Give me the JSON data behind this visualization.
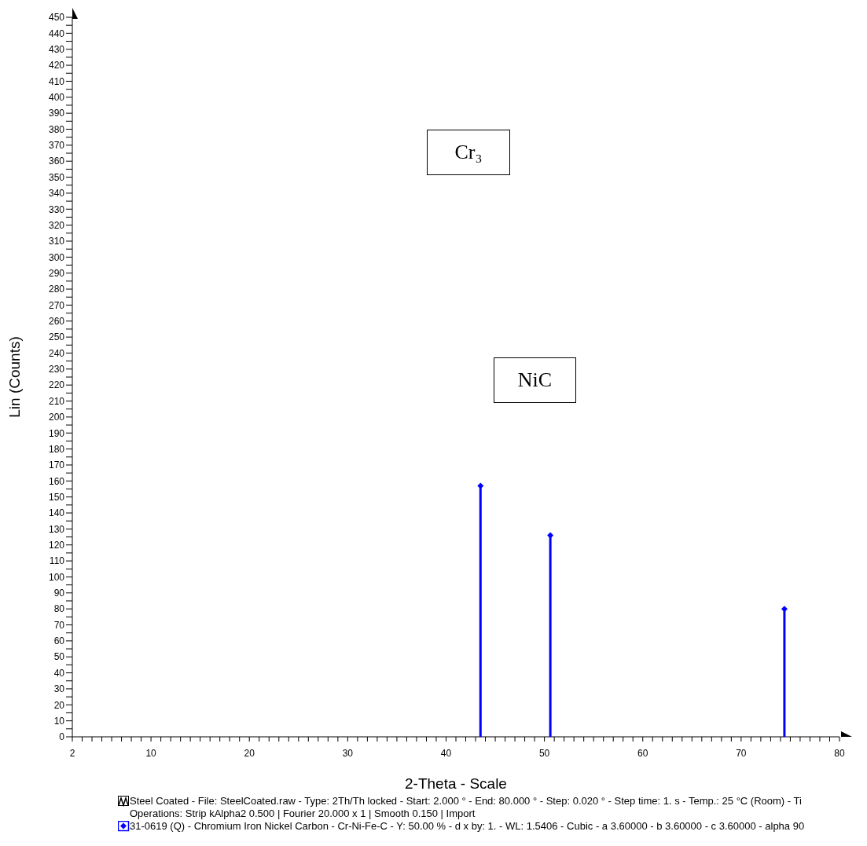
{
  "chart_data": {
    "type": "lollipop",
    "xlabel": "2-Theta - Scale",
    "ylabel": "Lin (Counts)",
    "x": [
      43.5,
      50.6,
      74.4
    ],
    "series": [
      {
        "name": "31-0619 (Q) - Chromium Iron Nickel Carbon - Cr-Ni-Fe-C - Y: 50.00 % - d x by: 1. - WL: 1.5406 - Cubic - a 3.60000 - b 3.60000 - c 3.60000 - alpha 90",
        "color": "#0000ff",
        "values": [
          157,
          126,
          80
        ]
      }
    ],
    "xlim": [
      2,
      80
    ],
    "xticks": [
      2,
      {
        "value": 3,
        "label": null
      },
      {
        "value": 4,
        "label": null
      },
      {
        "value": 5,
        "label": null
      },
      {
        "value": 6,
        "label": null
      },
      {
        "value": 7,
        "label": null
      },
      {
        "value": 8,
        "label": null
      },
      {
        "value": 9,
        "label": null
      },
      10,
      {
        "value": 11,
        "label": null
      },
      {
        "value": 12,
        "label": null
      },
      {
        "value": 13,
        "label": null
      },
      {
        "value": 14,
        "label": null
      },
      {
        "value": 15,
        "label": null
      },
      {
        "value": 16,
        "label": null
      },
      {
        "value": 17,
        "label": null
      },
      {
        "value": 18,
        "label": null
      },
      {
        "value": 19,
        "label": null
      },
      20,
      {
        "value": 21,
        "label": null
      },
      {
        "value": 22,
        "label": null
      },
      {
        "value": 23,
        "label": null
      },
      {
        "value": 24,
        "label": null
      },
      {
        "value": 25,
        "label": null
      },
      {
        "value": 26,
        "label": null
      },
      {
        "value": 27,
        "label": null
      },
      {
        "value": 28,
        "label": null
      },
      {
        "value": 29,
        "label": null
      },
      30,
      {
        "value": 31,
        "label": null
      },
      {
        "value": 32,
        "label": null
      },
      {
        "value": 33,
        "label": null
      },
      {
        "value": 34,
        "label": null
      },
      {
        "value": 35,
        "label": null
      },
      {
        "value": 36,
        "label": null
      },
      {
        "value": 37,
        "label": null
      },
      {
        "value": 38,
        "label": null
      },
      {
        "value": 39,
        "label": null
      },
      40,
      {
        "value": 41,
        "label": null
      },
      {
        "value": 42,
        "label": null
      },
      {
        "value": 43,
        "label": null
      },
      {
        "value": 44,
        "label": null
      },
      {
        "value": 45,
        "label": null
      },
      {
        "value": 46,
        "label": null
      },
      {
        "value": 47,
        "label": null
      },
      {
        "value": 48,
        "label": null
      },
      {
        "value": 49,
        "label": null
      },
      50,
      {
        "value": 51,
        "label": null
      },
      {
        "value": 52,
        "label": null
      },
      {
        "value": 53,
        "label": null
      },
      {
        "value": 54,
        "label": null
      },
      {
        "value": 55,
        "label": null
      },
      {
        "value": 56,
        "label": null
      },
      {
        "value": 57,
        "label": null
      },
      {
        "value": 58,
        "label": null
      },
      {
        "value": 59,
        "label": null
      },
      60,
      {
        "value": 61,
        "label": null
      },
      {
        "value": 62,
        "label": null
      },
      {
        "value": 63,
        "label": null
      },
      {
        "value": 64,
        "label": null
      },
      {
        "value": 65,
        "label": null
      },
      {
        "value": 66,
        "label": null
      },
      {
        "value": 67,
        "label": null
      },
      {
        "value": 68,
        "label": null
      },
      {
        "value": 69,
        "label": null
      },
      70,
      {
        "value": 71,
        "label": null
      },
      {
        "value": 72,
        "label": null
      },
      {
        "value": 73,
        "label": null
      },
      {
        "value": 74,
        "label": null
      },
      {
        "value": 75,
        "label": null
      },
      {
        "value": 76,
        "label": null
      },
      {
        "value": 77,
        "label": null
      },
      {
        "value": 78,
        "label": null
      },
      {
        "value": 79,
        "label": null
      },
      80
    ],
    "ylim": [
      0,
      450
    ],
    "yticks": [
      0,
      {
        "value": 5,
        "label": null
      },
      10,
      {
        "value": 15,
        "label": null
      },
      20,
      {
        "value": 25,
        "label": null
      },
      30,
      {
        "value": 35,
        "label": null
      },
      40,
      {
        "value": 45,
        "label": null
      },
      50,
      {
        "value": 55,
        "label": null
      },
      60,
      {
        "value": 65,
        "label": null
      },
      70,
      {
        "value": 75,
        "label": null
      },
      80,
      {
        "value": 85,
        "label": null
      },
      90,
      {
        "value": 95,
        "label": null
      },
      100,
      {
        "value": 105,
        "label": null
      },
      110,
      {
        "value": 115,
        "label": null
      },
      120,
      {
        "value": 125,
        "label": null
      },
      130,
      {
        "value": 135,
        "label": null
      },
      140,
      {
        "value": 145,
        "label": null
      },
      150,
      {
        "value": 155,
        "label": null
      },
      160,
      {
        "value": 165,
        "label": null
      },
      170,
      {
        "value": 175,
        "label": null
      },
      180,
      {
        "value": 185,
        "label": null
      },
      190,
      {
        "value": 195,
        "label": null
      },
      200,
      {
        "value": 205,
        "label": null
      },
      210,
      {
        "value": 215,
        "label": null
      },
      220,
      {
        "value": 225,
        "label": null
      },
      230,
      {
        "value": 235,
        "label": null
      },
      240,
      {
        "value": 245,
        "label": null
      },
      250,
      {
        "value": 255,
        "label": null
      },
      260,
      {
        "value": 265,
        "label": null
      },
      270,
      {
        "value": 275,
        "label": null
      },
      280,
      {
        "value": 285,
        "label": null
      },
      290,
      {
        "value": 295,
        "label": null
      },
      300,
      {
        "value": 305,
        "label": null
      },
      310,
      {
        "value": 315,
        "label": null
      },
      320,
      {
        "value": 325,
        "label": null
      },
      330,
      {
        "value": 335,
        "label": null
      },
      340,
      {
        "value": 345,
        "label": null
      },
      350,
      {
        "value": 355,
        "label": null
      },
      360,
      {
        "value": 365,
        "label": null
      },
      370,
      {
        "value": 375,
        "label": null
      },
      380,
      {
        "value": 385,
        "label": null
      },
      390,
      {
        "value": 395,
        "label": null
      },
      400,
      {
        "value": 405,
        "label": null
      },
      410,
      {
        "value": 415,
        "label": null
      },
      420,
      {
        "value": 425,
        "label": null
      },
      430,
      {
        "value": 435,
        "label": null
      },
      440,
      {
        "value": 445,
        "label": null
      },
      450
    ],
    "marker": "diamond",
    "legend": "bottom",
    "annotations": [
      "Cr₃",
      "NiC",
      "Steel Coated - File: SteelCoated.raw - Type: 2Th/Th locked - Start: 2.000 ° - End: 80.000 ° - Step: 0.020 ° - Step time: 1. s - Temp.: 25 °C (Room) - Ti Operations: Strip kAlpha2 0.500 | Fourier 20.000 x 1 | Smooth 0.150 | Import"
    ]
  }
}
